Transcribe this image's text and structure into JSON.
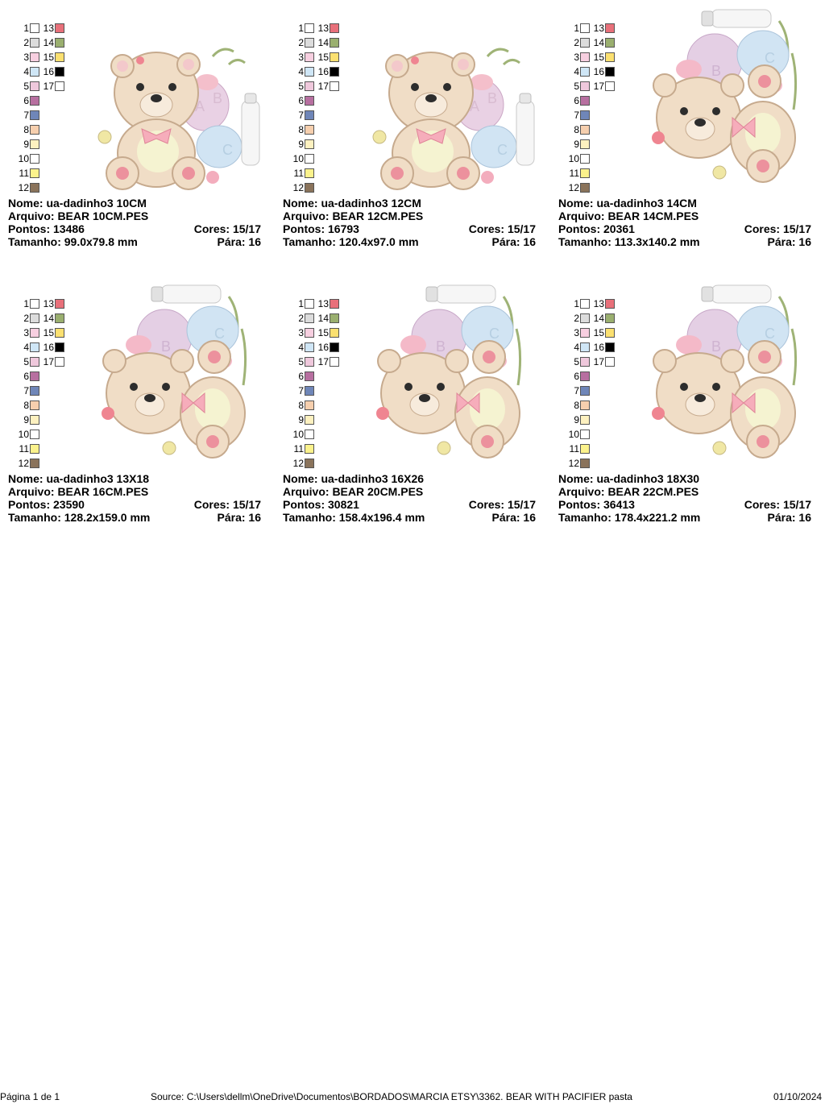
{
  "colors": {
    "1": "#ffffff",
    "2": "#dcdcdc",
    "3": "#f7cfe0",
    "4": "#cfe6f6",
    "5": "#efc8dc",
    "6": "#b76fa0",
    "7": "#6f86b8",
    "8": "#f6cfae",
    "9": "#fdf1c0",
    "10": "#ffffff",
    "11": "#fbf28c",
    "12": "#8a735b",
    "13": "#e8707a",
    "14": "#9aaf6f",
    "15": "#fbe070",
    "16": "#000000",
    "17": "#ffffff"
  },
  "designs": [
    {
      "nome": "Nome: ua-dadinho3 10CM",
      "arquivo": "Arquivo: BEAR 10CM.PES",
      "pontos": "Pontos: 13486",
      "cores": "Cores: 15/17",
      "tamanho": "Tamanho: 99.0x79.8 mm",
      "para": "Pára: 16",
      "layout": "landscape"
    },
    {
      "nome": "Nome: ua-dadinho3 12CM",
      "arquivo": "Arquivo: BEAR 12CM.PES",
      "pontos": "Pontos: 16793",
      "cores": "Cores: 15/17",
      "tamanho": "Tamanho: 120.4x97.0 mm",
      "para": "Pára: 16",
      "layout": "landscape"
    },
    {
      "nome": "Nome: ua-dadinho3 14CM",
      "arquivo": "Arquivo: BEAR 14CM.PES",
      "pontos": "Pontos: 20361",
      "cores": "Cores: 15/17",
      "tamanho": "Tamanho: 113.3x140.2 mm",
      "para": "Pára: 16",
      "layout": "portrait"
    },
    {
      "nome": "Nome: ua-dadinho3 13X18",
      "arquivo": "Arquivo: BEAR 16CM.PES",
      "pontos": "Pontos: 23590",
      "cores": "Cores: 15/17",
      "tamanho": "Tamanho: 128.2x159.0 mm",
      "para": "Pára: 16",
      "layout": "portrait"
    },
    {
      "nome": "Nome: ua-dadinho3 16X26",
      "arquivo": "Arquivo: BEAR 20CM.PES",
      "pontos": "Pontos: 30821",
      "cores": "Cores: 15/17",
      "tamanho": "Tamanho: 158.4x196.4 mm",
      "para": "Pára: 16",
      "layout": "portrait"
    },
    {
      "nome": "Nome: ua-dadinho3 18X30",
      "arquivo": "Arquivo: BEAR 22CM.PES",
      "pontos": "Pontos: 36413",
      "cores": "Cores: 15/17",
      "tamanho": "Tamanho: 178.4x221.2 mm",
      "para": "Pára: 16",
      "layout": "portrait"
    }
  ],
  "footer": {
    "page": "Página 1 de 1",
    "source": "Source: C:\\Users\\dellm\\OneDrive\\Documentos\\BORDADOS\\MARCIA ETSY\\3362. BEAR WITH PACIFIER pasta",
    "date": "01/10/2024"
  }
}
